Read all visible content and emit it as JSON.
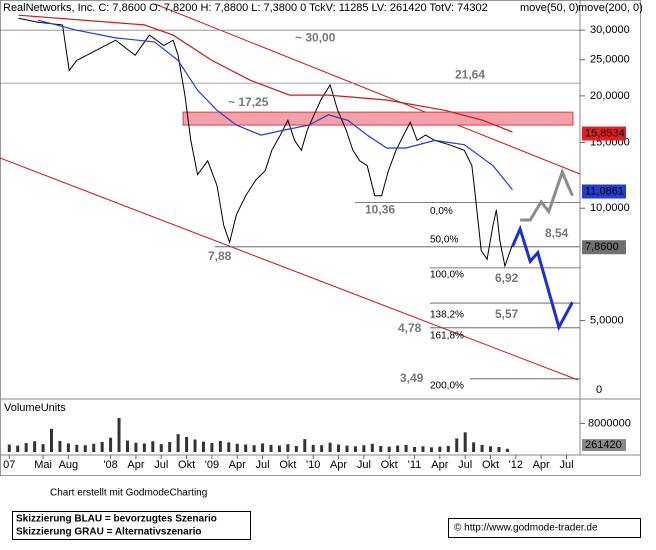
{
  "chart_data": {
    "type": "line",
    "header": "RealNetworks, Inc. C: 7,8600 O: 7,8200 H: 7,8800 L: 7,3800 0 TckV: 11285 LV: 261420 TotV: 74302",
    "log_scale": true,
    "xlim": [
      -1.1,
      67.6
    ],
    "xticks": [
      {
        "value": 0,
        "label": "07"
      },
      {
        "value": 4,
        "label": "Mai"
      },
      {
        "value": 7,
        "label": "Aug"
      },
      {
        "value": 12,
        "label": "'08"
      },
      {
        "value": 15,
        "label": "Apr"
      },
      {
        "value": 18,
        "label": "Jul"
      },
      {
        "value": 21,
        "label": "Okt"
      },
      {
        "value": 24,
        "label": "'09"
      },
      {
        "value": 27,
        "label": "Apr"
      },
      {
        "value": 30,
        "label": "Jul"
      },
      {
        "value": 33,
        "label": "Okt"
      },
      {
        "value": 36,
        "label": "'10"
      },
      {
        "value": 39,
        "label": "Apr"
      },
      {
        "value": 42,
        "label": "Jul"
      },
      {
        "value": 45,
        "label": "Okt"
      },
      {
        "value": 48,
        "label": "'11"
      },
      {
        "value": 51,
        "label": "Apr"
      },
      {
        "value": 54,
        "label": "Jul"
      },
      {
        "value": 57,
        "label": "Okt"
      },
      {
        "value": 60,
        "label": "'12"
      },
      {
        "value": 63,
        "label": "Apr"
      },
      {
        "value": 66,
        "label": "Jul"
      }
    ],
    "ylim": [
      3.1,
      35.7
    ],
    "yticks": [
      {
        "value": 30,
        "label": "30,0000"
      },
      {
        "value": 25,
        "label": "25,0000"
      },
      {
        "value": 20,
        "label": "20,0000"
      },
      {
        "value": 15,
        "label": "15,0000"
      },
      {
        "value": 10,
        "label": "10,0000"
      },
      {
        "value": 5,
        "label": "5,0000"
      }
    ],
    "y_bottom_label": "0",
    "series": [
      {
        "color": "#000000",
        "x": [
          1.1,
          3.4,
          6.3,
          7.1,
          8.0,
          10.3,
          12.6,
          14.9,
          16.6,
          18.3,
          19.4,
          20.0,
          20.8,
          21.5,
          22.3,
          23.5,
          24.6,
          25.4,
          26.1,
          26.9,
          28.0,
          29.2,
          30.3,
          31.1,
          32.1,
          33.0,
          33.8,
          34.6,
          35.3,
          36.1,
          36.9,
          38.0,
          38.9,
          39.9,
          40.7,
          41.5,
          42.4,
          43.3,
          44.1,
          44.9,
          45.8,
          46.7,
          47.5,
          48.3,
          49.3,
          50.4,
          52.1,
          53.9,
          54.8,
          55.2,
          55.9,
          56.6,
          57.3,
          57.7,
          58.1,
          58.7,
          59.6
        ],
        "values": [
          32.3,
          31.5,
          31.0,
          23.4,
          24.9,
          26.5,
          28.2,
          25.7,
          29.1,
          27.3,
          28.2,
          25.7,
          20.1,
          15.2,
          12.3,
          13.4,
          11.5,
          9.0,
          8.1,
          9.6,
          10.8,
          11.9,
          12.6,
          14.3,
          15.7,
          17.2,
          15.2,
          14.3,
          16.2,
          17.8,
          19.5,
          21.4,
          18.3,
          16.2,
          14.3,
          13.4,
          13.0,
          10.8,
          10.8,
          12.6,
          14.3,
          15.7,
          17.0,
          15.2,
          15.7,
          15.2,
          14.8,
          14.3,
          13.0,
          10.8,
          7.7,
          7.3,
          9.0,
          9.9,
          8.2,
          7.0,
          8.0
        ]
      },
      {
        "name": "move(50, 0)",
        "color": "#1f3fd0",
        "x": [
          3.4,
          8.0,
          12.6,
          17.2,
          20.0,
          22.3,
          24.6,
          26.9,
          29.8,
          32.6,
          35.5,
          37.8,
          40.1,
          42.4,
          44.7,
          47.0,
          50.4,
          53.9,
          57.3,
          59.6
        ],
        "values": [
          31.9,
          30.0,
          28.6,
          27.9,
          24.9,
          20.7,
          18.3,
          16.7,
          15.7,
          16.2,
          16.7,
          17.8,
          17.2,
          15.7,
          14.5,
          14.5,
          15.2,
          14.8,
          13.0,
          11.2
        ]
      },
      {
        "name": "move(200, 0)",
        "color": "#d01818",
        "x": [
          1.1,
          16.0,
          19.4,
          24.0,
          28.6,
          33.2,
          37.8,
          44.7,
          51.6,
          56.1,
          59.6
        ],
        "values": [
          32.9,
          31.0,
          29.1,
          24.9,
          22.0,
          20.1,
          20.1,
          19.5,
          18.3,
          17.2,
          16.0
        ]
      }
    ],
    "last_values": [
      {
        "value": 15.8534,
        "label": "15,8534",
        "color": "#e02020"
      },
      {
        "value": 11.0861,
        "label": "11,0861",
        "color": "#1f3fd0"
      },
      {
        "value": 7.86,
        "label": "7,8600",
        "color": "#707070"
      }
    ],
    "zone": {
      "label": "~ 17,25",
      "range": [
        16.7,
        18.1
      ],
      "color": "#f4a0a8"
    },
    "levels": [
      {
        "value": 30,
        "label": "~ 30,00"
      },
      {
        "value": 21.64,
        "label": "21,64"
      },
      {
        "value": 10.36,
        "label": "10,36",
        "fib": "0,0%"
      },
      {
        "value": 7.88,
        "label": "7,88",
        "fib": "50,0%"
      },
      {
        "value": 6.92,
        "label": "6,92",
        "fib": "100,0%"
      },
      {
        "value": 5.57,
        "label": "5,57",
        "fib": "138,2%"
      },
      {
        "value": 4.78,
        "label": "4,78",
        "fib": "161,8%"
      },
      {
        "value": 3.49,
        "label": "3,49",
        "fib": "200,0%"
      }
    ],
    "target": {
      "value": 8.54,
      "label": "8,54"
    },
    "scenarios": [
      {
        "color": "#1a2fd6",
        "x": [
          59.6,
          60.5,
          61.7,
          62.6,
          65.1,
          66.7
        ],
        "values": [
          7.9,
          8.8,
          7.2,
          7.6,
          4.8,
          5.6
        ]
      },
      {
        "color": "#8c8c8c",
        "x": [
          60.5,
          61.7,
          63.0,
          63.9,
          65.5,
          66.7
        ],
        "values": [
          9.3,
          9.3,
          10.4,
          9.8,
          12.5,
          10.8
        ]
      }
    ],
    "volume": {
      "title": "VolumeUnits",
      "ylim": [
        0,
        14000000
      ],
      "yticks": [
        8000000
      ],
      "last": 261420,
      "x": [
        0,
        1,
        2,
        3,
        4,
        5,
        6,
        7,
        8,
        9,
        10,
        11,
        12,
        13,
        14,
        15,
        16,
        17,
        18,
        19,
        20,
        21,
        22,
        23,
        24,
        25,
        26,
        27,
        28,
        29,
        30,
        31,
        32,
        33,
        34,
        35,
        36,
        37,
        38,
        39,
        40,
        41,
        42,
        43,
        44,
        45,
        46,
        47,
        48,
        49,
        50,
        51,
        52,
        53,
        54,
        55,
        56,
        57,
        58,
        59
      ],
      "values": [
        2100000,
        1800000,
        2500000,
        3000000,
        2200000,
        6500000,
        3100000,
        2400000,
        2000000,
        1900000,
        2300000,
        2800000,
        4000000,
        9500000,
        3200000,
        2600000,
        2400000,
        3000000,
        2200000,
        2800000,
        5000000,
        4200000,
        3500000,
        2900000,
        2500000,
        3100000,
        2700000,
        2300000,
        2100000,
        1900000,
        2400000,
        2000000,
        1800000,
        2200000,
        1700000,
        3600000,
        2000000,
        1900000,
        2600000,
        2100000,
        1800000,
        1600000,
        1900000,
        2300000,
        1700000,
        1500000,
        1800000,
        2000000,
        1400000,
        1600000,
        1300000,
        1500000,
        1700000,
        3800000,
        5500000,
        2700000,
        2000000,
        1600000,
        1400000,
        900000
      ]
    },
    "footer": {
      "credit": "Chart erstellt mit GodmodeCharting",
      "legend": [
        "Skizzierung BLAU = bevorzugtes Szenario",
        "Skizzierung GRAU = Alternativszenario"
      ],
      "url": "© http://www.godmode-trader.de"
    }
  }
}
